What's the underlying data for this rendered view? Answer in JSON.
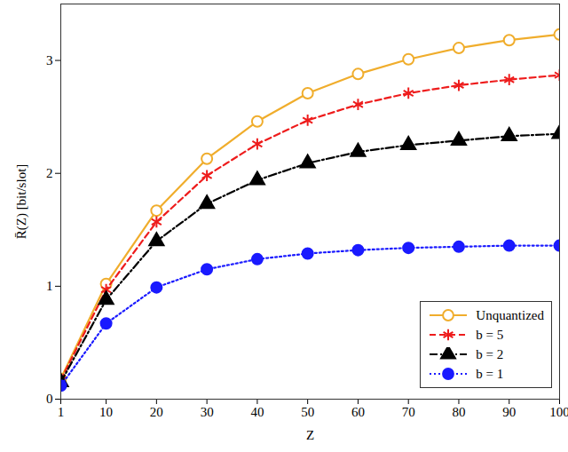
{
  "chart_data": {
    "type": "line",
    "x_label": "Z",
    "y_label": "R̄(Z) [bit/slot]",
    "x": [
      1,
      10,
      20,
      30,
      40,
      50,
      60,
      70,
      80,
      90,
      100
    ],
    "xlim": [
      1,
      100
    ],
    "xticks": [
      1,
      10,
      20,
      30,
      40,
      50,
      60,
      70,
      80,
      90,
      100
    ],
    "ylim": [
      0,
      3.5
    ],
    "yticks": [
      0,
      1,
      2,
      3
    ],
    "grid": false,
    "legend": "bottom-right",
    "series": [
      {
        "name": "Unquantized",
        "color": "#f0ad2c",
        "marker": "circle",
        "line_style": "solid",
        "values": [
          0.18,
          1.02,
          1.67,
          2.13,
          2.46,
          2.71,
          2.88,
          3.01,
          3.11,
          3.18,
          3.23
        ]
      },
      {
        "name": "b = 5",
        "color": "#ee1c1c",
        "marker": "asterisk",
        "line_style": "dashed",
        "values": [
          0.17,
          0.97,
          1.57,
          1.98,
          2.26,
          2.47,
          2.61,
          2.71,
          2.78,
          2.83,
          2.87
        ]
      },
      {
        "name": "b = 2",
        "color": "#000000",
        "marker": "triangle",
        "line_style": "dashdot",
        "values": [
          0.15,
          0.88,
          1.4,
          1.73,
          1.94,
          2.09,
          2.19,
          2.25,
          2.29,
          2.33,
          2.35
        ]
      },
      {
        "name": "b = 1",
        "color": "#1a1aff",
        "marker": "dot",
        "line_style": "dotted",
        "values": [
          0.12,
          0.67,
          0.99,
          1.15,
          1.24,
          1.29,
          1.32,
          1.34,
          1.35,
          1.36,
          1.36
        ]
      }
    ]
  }
}
